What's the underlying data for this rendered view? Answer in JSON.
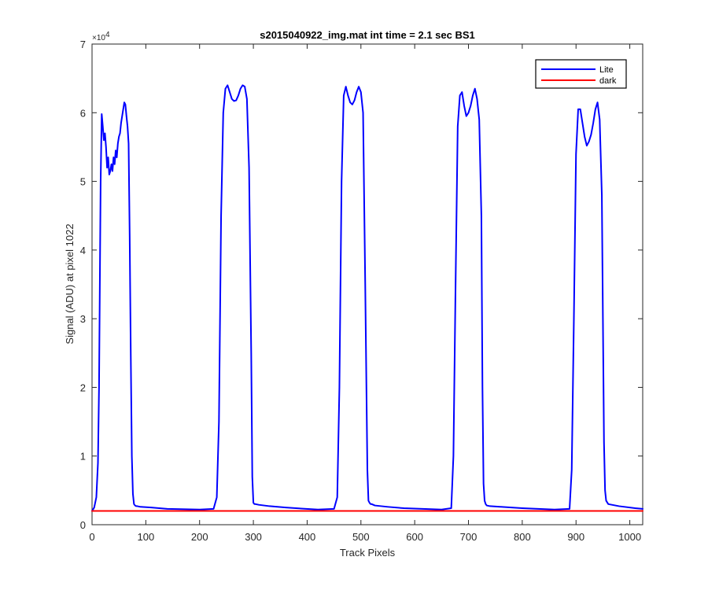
{
  "chart_data": {
    "type": "line",
    "title": "s2015040922_img.mat int time = 2.1 sec   BS1",
    "xlabel": "Track Pixels",
    "ylabel": "Signal (ADU) at pixel 1022",
    "y_multiplier": "×10",
    "y_exponent": "4",
    "xlim": [
      0,
      1024
    ],
    "ylim": [
      0,
      7
    ],
    "xticks": [
      0,
      100,
      200,
      300,
      400,
      500,
      600,
      700,
      800,
      900,
      1000
    ],
    "yticks": [
      0,
      1,
      2,
      3,
      4,
      5,
      6,
      7
    ],
    "grid": false,
    "legend_position": "top-right",
    "series": [
      {
        "name": "Lite",
        "color": "#0000ff",
        "x": [
          0,
          4,
          8,
          11,
          13,
          15,
          16,
          18,
          20,
          22,
          24,
          26,
          28,
          30,
          32,
          34,
          36,
          38,
          40,
          42,
          44,
          46,
          48,
          50,
          52,
          54,
          56,
          58,
          60,
          62,
          64,
          66,
          68,
          70,
          72,
          74,
          76,
          78,
          80,
          82,
          84,
          90,
          110,
          140,
          200,
          226,
          232,
          236,
          240,
          244,
          248,
          252,
          256,
          260,
          264,
          268,
          272,
          276,
          280,
          284,
          288,
          292,
          296,
          298,
          300,
          302,
          304,
          310,
          330,
          360,
          420,
          450,
          456,
          460,
          464,
          468,
          472,
          476,
          480,
          484,
          488,
          492,
          496,
          500,
          504,
          508,
          512,
          514,
          516,
          518,
          520,
          526,
          550,
          580,
          650,
          668,
          672,
          676,
          680,
          684,
          688,
          692,
          696,
          700,
          704,
          708,
          712,
          716,
          720,
          724,
          726,
          728,
          730,
          732,
          734,
          740,
          760,
          800,
          860,
          888,
          892,
          896,
          900,
          904,
          908,
          912,
          916,
          920,
          924,
          928,
          932,
          936,
          940,
          944,
          948,
          950,
          952,
          954,
          956,
          960,
          980,
          1010,
          1024
        ],
        "values": [
          0.2,
          0.25,
          0.4,
          0.9,
          2.0,
          4.0,
          5.0,
          5.98,
          5.8,
          5.6,
          5.7,
          5.5,
          5.2,
          5.35,
          5.1,
          5.15,
          5.25,
          5.15,
          5.35,
          5.25,
          5.45,
          5.35,
          5.55,
          5.65,
          5.7,
          5.85,
          5.95,
          6.05,
          6.15,
          6.12,
          5.95,
          5.8,
          5.55,
          4.2,
          2.5,
          1.0,
          0.45,
          0.3,
          0.28,
          0.27,
          0.27,
          0.26,
          0.25,
          0.23,
          0.22,
          0.23,
          0.4,
          1.5,
          4.5,
          6.0,
          6.35,
          6.4,
          6.3,
          6.2,
          6.17,
          6.18,
          6.25,
          6.35,
          6.4,
          6.38,
          6.2,
          5.2,
          2.5,
          0.7,
          0.32,
          0.3,
          0.3,
          0.29,
          0.27,
          0.25,
          0.22,
          0.23,
          0.4,
          2.0,
          5.0,
          6.25,
          6.38,
          6.25,
          6.15,
          6.12,
          6.18,
          6.3,
          6.38,
          6.3,
          6.0,
          3.5,
          0.8,
          0.35,
          0.32,
          0.3,
          0.3,
          0.28,
          0.26,
          0.24,
          0.22,
          0.24,
          1.0,
          3.5,
          5.8,
          6.25,
          6.3,
          6.1,
          5.95,
          6.0,
          6.1,
          6.25,
          6.35,
          6.2,
          5.9,
          4.5,
          2.0,
          0.6,
          0.35,
          0.3,
          0.28,
          0.27,
          0.26,
          0.24,
          0.22,
          0.23,
          0.8,
          3.0,
          5.4,
          6.05,
          6.05,
          5.85,
          5.65,
          5.52,
          5.58,
          5.68,
          5.85,
          6.05,
          6.15,
          5.9,
          4.8,
          3.0,
          1.2,
          0.5,
          0.35,
          0.3,
          0.27,
          0.24,
          0.23
        ]
      },
      {
        "name": "dark",
        "color": "#ff0000",
        "x": [
          0,
          1024
        ],
        "values": [
          0.2,
          0.2
        ]
      }
    ]
  }
}
